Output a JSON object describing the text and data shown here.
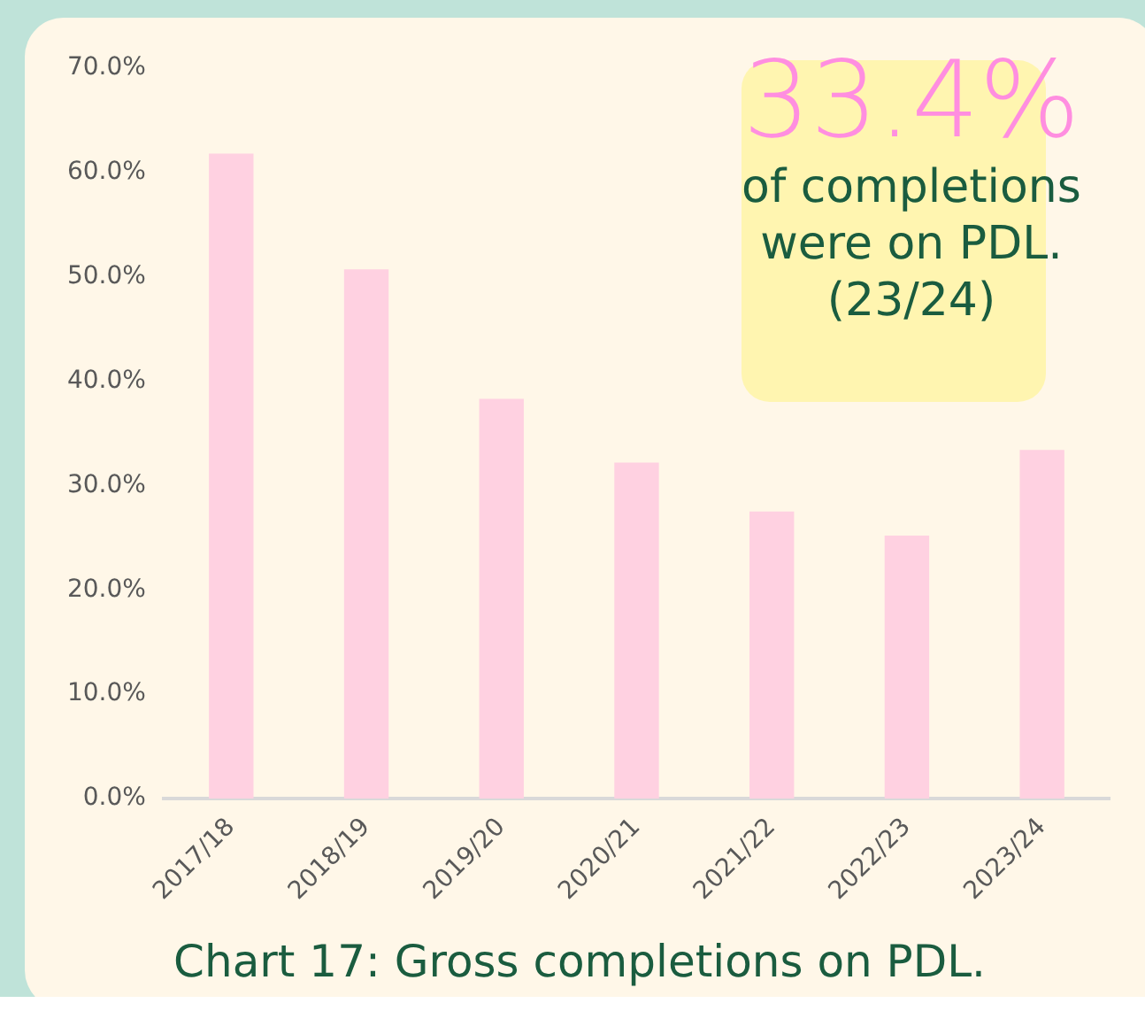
{
  "chart_data": {
    "type": "bar",
    "title": "Chart 17: Gross completions on PDL.",
    "categories": [
      "2017/18",
      "2018/19",
      "2019/20",
      "2020/21",
      "2021/22",
      "2022/23",
      "2023/24"
    ],
    "values": [
      61.8,
      50.7,
      38.3,
      32.2,
      27.5,
      25.2,
      33.4
    ],
    "color": "#ffd1e1",
    "ylim": [
      0,
      70
    ],
    "yticks": [
      {
        "value": 0,
        "label": "0.0%"
      },
      {
        "value": 10,
        "label": "10.0%"
      },
      {
        "value": 20,
        "label": "20.0%"
      },
      {
        "value": 30,
        "label": "30.0%"
      },
      {
        "value": 40,
        "label": "40.0%"
      },
      {
        "value": 50,
        "label": "50.0%"
      },
      {
        "value": 60,
        "label": "60.0%"
      },
      {
        "value": 70,
        "label": "70.0%"
      }
    ],
    "grid": false,
    "legend": false,
    "annotations": [
      "33.4%",
      "of completions were on PDL. (23/24)"
    ]
  }
}
